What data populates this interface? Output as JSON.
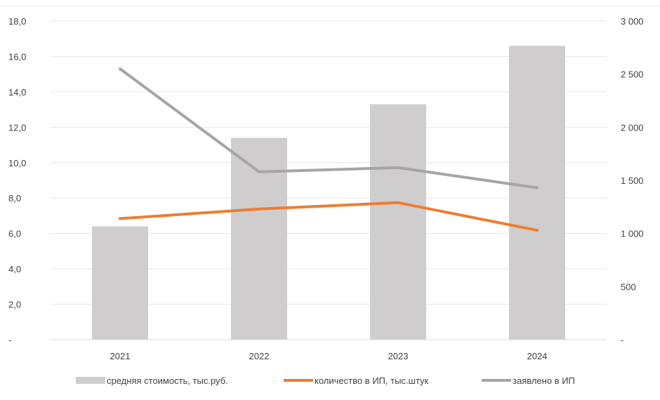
{
  "chart_data": {
    "type": "bar",
    "categories": [
      "2021",
      "2022",
      "2023",
      "2024"
    ],
    "series": [
      {
        "name": "средняя стоимость, тыс.руб.",
        "type": "bar",
        "axis": "left",
        "values": [
          6.4,
          11.4,
          13.3,
          16.6
        ],
        "color": "#cfcdcd"
      },
      {
        "name": "количество в ИП, тыс.штук",
        "type": "line",
        "axis": "right",
        "values": [
          1140,
          1230,
          1290,
          1030
        ],
        "color": "#ed7d31"
      },
      {
        "name": "заявлено в ИП",
        "type": "line",
        "axis": "right",
        "values": [
          2550,
          1580,
          1620,
          1430
        ],
        "color": "#a5a5a5"
      }
    ],
    "left_axis": {
      "ylim": [
        0,
        18
      ],
      "ticks": [
        0,
        2,
        4,
        6,
        8,
        10,
        12,
        14,
        16,
        18
      ],
      "tick_labels": [
        "-",
        "2,0",
        "4,0",
        "6,0",
        "8,0",
        "10,0",
        "12,0",
        "14,0",
        "16,0",
        "18,0"
      ]
    },
    "right_axis": {
      "ylim": [
        0,
        3000
      ],
      "ticks": [
        0,
        500,
        1000,
        1500,
        2000,
        2500,
        3000
      ],
      "tick_labels": [
        "-",
        "500",
        "1 000",
        "1 500",
        "2 000",
        "2 500",
        "3 000"
      ]
    },
    "grid": true,
    "legend_position": "bottom",
    "title": "",
    "xlabel": "",
    "ylabel": ""
  }
}
